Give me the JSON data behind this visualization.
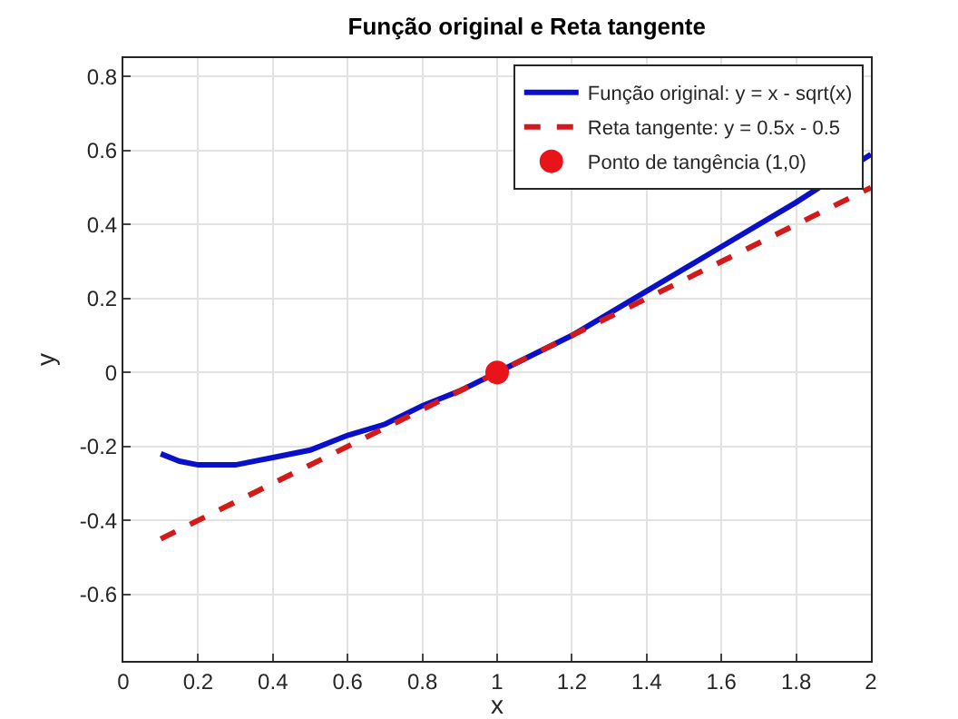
{
  "chart_data": {
    "type": "line",
    "title": "Função original e Reta tangente",
    "xlabel": "x",
    "ylabel": "y",
    "xlim": [
      0,
      2
    ],
    "xticks": [
      0,
      0.2,
      0.4,
      0.6,
      0.8,
      1,
      1.2,
      1.4,
      1.6,
      1.8,
      2
    ],
    "ylim": [
      -0.78,
      0.85
    ],
    "yticks": [
      -0.6,
      -0.4,
      -0.2,
      0,
      0.2,
      0.4,
      0.6,
      0.8
    ],
    "grid": true,
    "legend": "top right",
    "series": [
      {
        "name": "Função original: y = x - sqrt(x)",
        "color": "#0a10c8",
        "line_style": "solid",
        "marker": "none",
        "x": [
          0.1,
          0.15,
          0.2,
          0.25,
          0.3,
          0.4,
          0.5,
          0.6,
          0.7,
          0.8,
          0.9,
          1,
          1.2,
          1.4,
          1.6,
          1.8,
          2
        ],
        "values": [
          -0.22,
          -0.24,
          -0.25,
          -0.25,
          -0.25,
          -0.23,
          -0.21,
          -0.17,
          -0.14,
          -0.09,
          -0.05,
          0,
          0.1,
          0.22,
          0.34,
          0.46,
          0.59
        ]
      },
      {
        "name": "Reta tangente: y = 0.5x - 0.5",
        "color": "#d21a1a",
        "line_style": "dashed",
        "marker": "none",
        "x": [
          0.1,
          2
        ],
        "values": [
          -0.45,
          0.5
        ]
      },
      {
        "name": "Ponto de tangência (1,0)",
        "type": "scatter",
        "color": "#e8141a",
        "marker": "circle",
        "x": [
          1
        ],
        "values": [
          0
        ]
      }
    ]
  }
}
